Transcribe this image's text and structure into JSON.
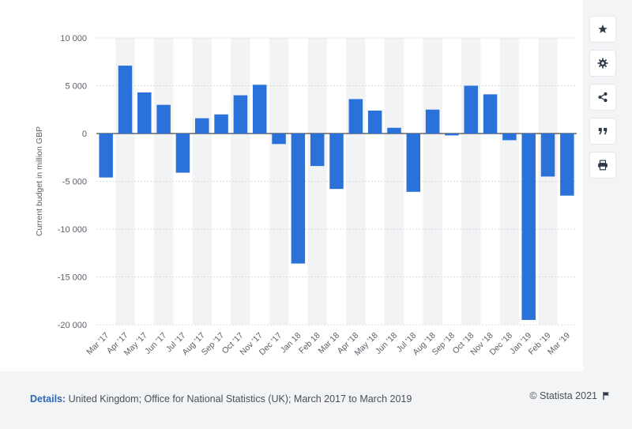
{
  "chart_data": {
    "type": "bar",
    "categories": [
      "Mar '17",
      "Apr '17",
      "May '17",
      "Jun '17",
      "Jul '17",
      "Aug '17",
      "Sep '17",
      "Oct '17",
      "Nov '17",
      "Dec '17",
      "Jan 18",
      "Feb 18",
      "Mar 18",
      "Apr '18",
      "May '18",
      "Jun '18",
      "Jul '18",
      "Aug '18",
      "Sep '18",
      "Oct '18",
      "Nov '18",
      "Dec '18",
      "Jan '19",
      "Feb '19",
      "Mar '19"
    ],
    "values": [
      -4600,
      7100,
      4300,
      3000,
      -4100,
      1600,
      2000,
      4000,
      5100,
      -1100,
      -13600,
      -3400,
      -5800,
      3600,
      2400,
      600,
      -6100,
      2500,
      -200,
      5000,
      4100,
      -700,
      -19500,
      -4500,
      -6500
    ],
    "ylabel": "Current budget in million GBP",
    "ylim": [
      -20000,
      10000
    ],
    "yticks": [
      10000,
      5000,
      0,
      -5000,
      -10000,
      -15000,
      -20000
    ],
    "ytick_labels": [
      "10 000",
      "5 000",
      "0",
      "-5 000",
      "-10 000",
      "-15 000",
      "-20 000"
    ],
    "bar_color": "#2a72d9",
    "grid": true
  },
  "footer": {
    "details_label": "Details:",
    "details_text": "United Kingdom; Office for National Statistics (UK); March 2017 to March 2019",
    "credit": "© Statista 2021"
  },
  "toolbar": [
    "star-icon",
    "gear-icon",
    "share-icon",
    "quote-icon",
    "print-icon"
  ]
}
